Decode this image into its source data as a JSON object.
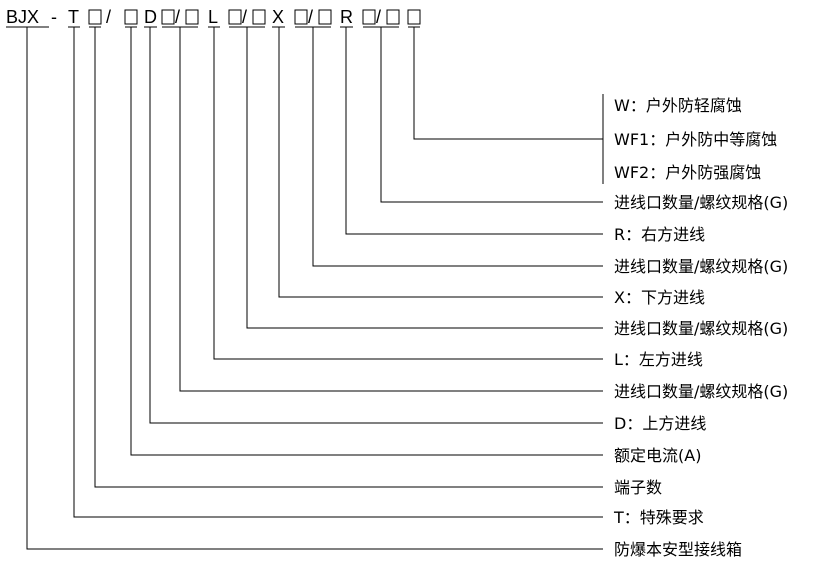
{
  "code_segments": [
    {
      "kind": "text",
      "value": "BJX"
    },
    {
      "kind": "text",
      "value": "-"
    },
    {
      "kind": "text",
      "value": "T"
    },
    {
      "kind": "box"
    },
    {
      "kind": "text",
      "value": "/"
    },
    {
      "kind": "box"
    },
    {
      "kind": "text",
      "value": "D"
    },
    {
      "kind": "box"
    },
    {
      "kind": "text",
      "value": "/"
    },
    {
      "kind": "box"
    },
    {
      "kind": "text",
      "value": "L"
    },
    {
      "kind": "box"
    },
    {
      "kind": "text",
      "value": "/"
    },
    {
      "kind": "box"
    },
    {
      "kind": "text",
      "value": "X"
    },
    {
      "kind": "box"
    },
    {
      "kind": "text",
      "value": "/"
    },
    {
      "kind": "box"
    },
    {
      "kind": "text",
      "value": "R"
    },
    {
      "kind": "box"
    },
    {
      "kind": "text",
      "value": "/"
    },
    {
      "kind": "box"
    },
    {
      "kind": "box"
    }
  ],
  "labels": [
    "W：户外防轻腐蚀",
    "WF1：户外防中等腐蚀",
    "WF2：户外防强腐蚀",
    "进线口数量/螺纹规格(G)",
    "R：右方进线",
    "进线口数量/螺纹规格(G)",
    "X：下方进线",
    "进线口数量/螺纹规格(G)",
    "L：左方进线",
    "进线口数量/螺纹规格(G)",
    "D：上方进线",
    "额定电流(A)",
    "端子数",
    "T：特殊要求",
    "防爆本安型接线箱"
  ]
}
